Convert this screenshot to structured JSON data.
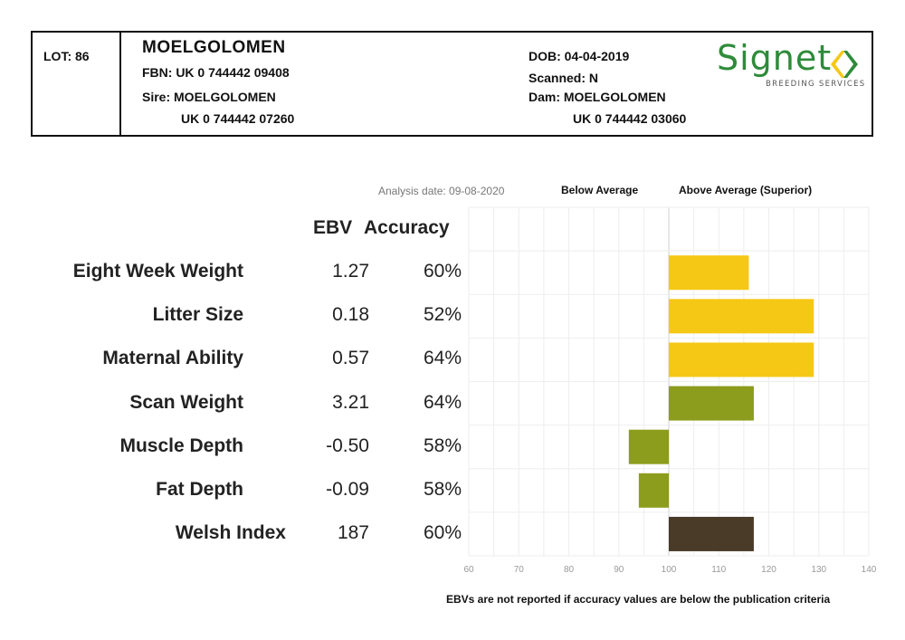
{
  "header": {
    "lot": "LOT: 86",
    "name": "MOELGOLOMEN",
    "fbn": "FBN: UK 0 744442 09408",
    "sire_label": "Sire: MOELGOLOMEN",
    "sire_id": "UK 0 744442 07260",
    "dob": "DOB: 04-04-2019",
    "scanned": "Scanned: N",
    "dam_label": "Dam: MOELGOLOMEN",
    "dam_id": "UK 0 744442 03060",
    "logo_word": "Signet",
    "logo_sub": "BREEDING SERVICES",
    "logo_color": "#2e8b3a"
  },
  "labels": {
    "analysis_date": "Analysis date: 09-08-2020",
    "below_average": "Below Average",
    "above_average": "Above Average (Superior)",
    "ebv": "EBV",
    "accuracy": "Accuracy",
    "footnote": "EBVs are not reported if accuracy values are below the publication criteria"
  },
  "chart_data": {
    "type": "bar",
    "orientation": "horizontal",
    "baseline": 100,
    "xlim": [
      60,
      140
    ],
    "xticks": [
      "60",
      "70",
      "80",
      "90",
      "100",
      "110",
      "120",
      "130",
      "140"
    ],
    "grid": true,
    "categories": [
      "Eight Week Weight",
      "Litter Size",
      "Maternal Ability",
      "Scan Weight",
      "Muscle Depth",
      "Fat Depth",
      "Welsh Index"
    ],
    "ebv": [
      "1.27",
      "0.18",
      "0.57",
      "3.21",
      "-0.50",
      "-0.09",
      "187"
    ],
    "accuracy": [
      "60%",
      "52%",
      "64%",
      "64%",
      "58%",
      "58%",
      "60%"
    ],
    "values": [
      116,
      129,
      129,
      117,
      92,
      94,
      117
    ],
    "colors": [
      "#f5c816",
      "#f5c816",
      "#f5c816",
      "#8c9c1c",
      "#8c9c1c",
      "#8c9c1c",
      "#4a3a28"
    ]
  }
}
